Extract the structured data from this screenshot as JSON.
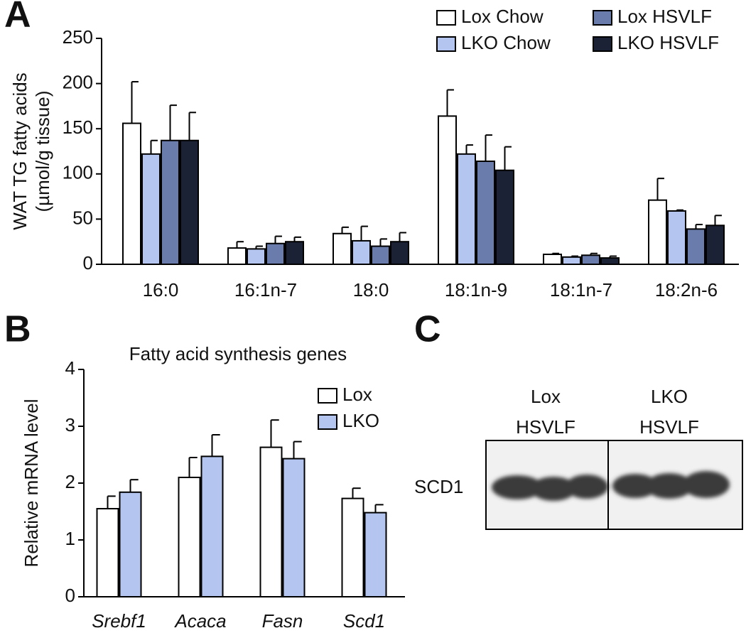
{
  "chart_data": [
    {
      "type": "bar",
      "panel_label": "A",
      "ylabel": [
        "WAT TG fatty acids",
        "(µmol/g tissue)"
      ],
      "categories": [
        "16:0",
        "16:1n-7",
        "18:0",
        "18:1n-9",
        "18:1n-7",
        "18:2n-6"
      ],
      "series": [
        {
          "name": "Lox Chow",
          "color": "#ffffff",
          "values": [
            156,
            18,
            34,
            164,
            11,
            71
          ],
          "errors": [
            46,
            7,
            7,
            29,
            1,
            24
          ]
        },
        {
          "name": "LKO Chow",
          "color": "#b4c6f0",
          "values": [
            122,
            17,
            26,
            122,
            8,
            59
          ],
          "errors": [
            15,
            3,
            16,
            10,
            1,
            1
          ]
        },
        {
          "name": "Lox HSVLF",
          "color": "#6a7cab",
          "values": [
            137,
            23,
            20,
            114,
            10,
            39
          ],
          "errors": [
            39,
            8,
            8,
            29,
            2,
            5
          ]
        },
        {
          "name": "LKO HSVLF",
          "color": "#1c2236",
          "values": [
            137,
            25,
            25,
            104,
            7,
            43
          ],
          "errors": [
            31,
            5,
            10,
            26,
            2,
            11
          ]
        }
      ],
      "ylim": [
        0,
        250
      ],
      "yticks": [
        0,
        50,
        100,
        150,
        200,
        250
      ],
      "legend": "upper right"
    },
    {
      "type": "bar",
      "panel_label": "B",
      "title": "Fatty acid synthesis genes",
      "ylabel": [
        "Relative mRNA level"
      ],
      "categories": [
        "Srebf1",
        "Acaca",
        "Fasn",
        "Scd1"
      ],
      "category_style": "italic",
      "series": [
        {
          "name": "Lox",
          "color": "#ffffff",
          "values": [
            1.55,
            2.1,
            2.63,
            1.73
          ],
          "errors": [
            0.22,
            0.35,
            0.48,
            0.18
          ]
        },
        {
          "name": "LKO",
          "color": "#b4c6f0",
          "values": [
            1.84,
            2.47,
            2.43,
            1.48
          ],
          "errors": [
            0.22,
            0.38,
            0.3,
            0.14
          ]
        }
      ],
      "ylim": [
        0,
        4
      ],
      "yticks": [
        0,
        1,
        2,
        3,
        4
      ],
      "legend": "upper right"
    }
  ],
  "blot": {
    "panel_label": "C",
    "groups": [
      [
        "Lox",
        "HSVLF"
      ],
      [
        "LKO",
        "HSVLF"
      ]
    ],
    "band_label": "SCD1"
  }
}
